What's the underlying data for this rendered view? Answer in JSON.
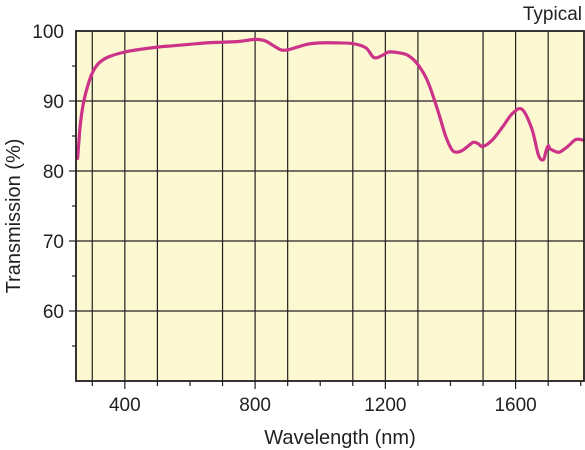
{
  "chart_data": {
    "type": "line",
    "title": "",
    "annotation": "Typical",
    "xlabel": "Wavelength (nm)",
    "ylabel": "Transmission (%)",
    "xlim": [
      250,
      1810
    ],
    "ylim": [
      50,
      100
    ],
    "x_ticks": [
      400,
      800,
      1200,
      1600
    ],
    "y_ticks": [
      60,
      70,
      80,
      90,
      100
    ],
    "x_gridlines": [
      300,
      500,
      700,
      900,
      1100,
      1300,
      1500,
      1700
    ],
    "y_gridlines": [
      60,
      70,
      80,
      90
    ],
    "grid": true,
    "colors": {
      "plot_background": "#fcf8d2",
      "line": "#cc3388",
      "grid": "#231f20",
      "axis": "#231f20",
      "text": "#231f20"
    },
    "series": [
      {
        "name": "",
        "x": [
          255,
          263,
          272,
          285,
          300,
          320,
          350,
          400,
          450,
          500,
          550,
          600,
          650,
          700,
          750,
          800,
          830,
          860,
          880,
          900,
          930,
          960,
          1000,
          1050,
          1100,
          1140,
          1165,
          1190,
          1210,
          1240,
          1270,
          1300,
          1330,
          1360,
          1385,
          1405,
          1420,
          1435,
          1450,
          1470,
          1485,
          1500,
          1530,
          1560,
          1590,
          1620,
          1650,
          1670,
          1685,
          1693,
          1700,
          1705,
          1712,
          1722,
          1735,
          1760,
          1785,
          1808
        ],
        "y": [
          81.8,
          86.5,
          89.5,
          92.0,
          94.0,
          95.4,
          96.3,
          97.0,
          97.4,
          97.7,
          97.9,
          98.1,
          98.3,
          98.4,
          98.5,
          98.8,
          98.6,
          97.8,
          97.3,
          97.3,
          97.7,
          98.1,
          98.3,
          98.3,
          98.2,
          97.6,
          96.2,
          96.5,
          97.0,
          96.9,
          96.5,
          95.2,
          92.8,
          88.8,
          85.0,
          83.0,
          82.7,
          82.9,
          83.4,
          84.1,
          83.9,
          83.5,
          84.5,
          86.3,
          88.2,
          88.8,
          86.0,
          82.3,
          81.6,
          82.8,
          83.6,
          83.2,
          83.0,
          82.8,
          82.7,
          83.5,
          84.5,
          84.4
        ]
      }
    ]
  }
}
